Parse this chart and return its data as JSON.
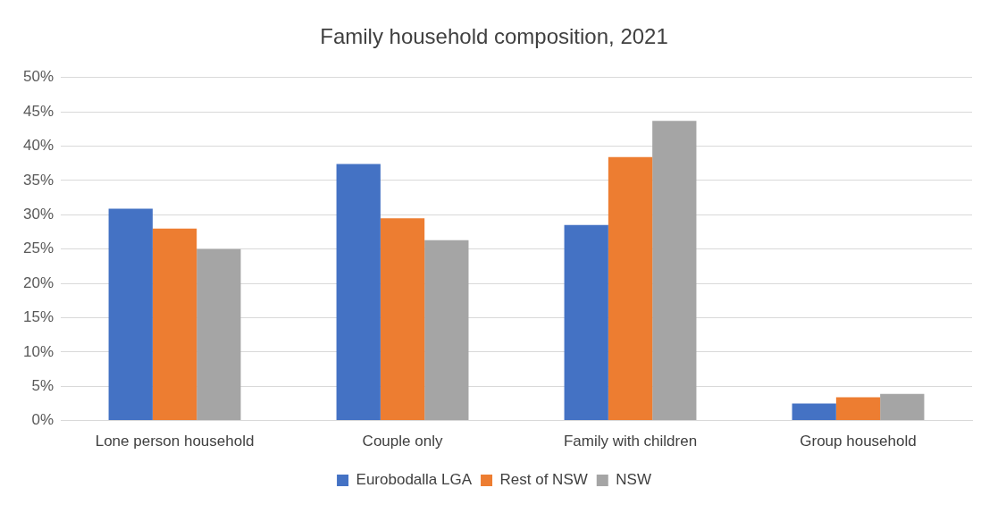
{
  "chart_data": {
    "type": "bar",
    "title": "Family household composition, 2021",
    "categories": [
      "Lone person household",
      "Couple only",
      "Family with children",
      "Group household"
    ],
    "series": [
      {
        "name": "Eurobodalla LGA",
        "color": "#4472c4",
        "values": [
          30.9,
          37.4,
          28.5,
          2.5
        ]
      },
      {
        "name": "Rest of NSW",
        "color": "#ed7d31",
        "values": [
          28.0,
          29.5,
          38.4,
          3.4
        ]
      },
      {
        "name": "NSW",
        "color": "#a5a5a5",
        "values": [
          25.0,
          26.3,
          43.7,
          3.9
        ]
      }
    ],
    "ylim": [
      0,
      50
    ],
    "yticks": [
      {
        "value": 0,
        "label": "0%"
      },
      {
        "value": 5,
        "label": "5%"
      },
      {
        "value": 10,
        "label": "10%"
      },
      {
        "value": 15,
        "label": "15%"
      },
      {
        "value": 20,
        "label": "20%"
      },
      {
        "value": 25,
        "label": "25%"
      },
      {
        "value": 30,
        "label": "30%"
      },
      {
        "value": 35,
        "label": "35%"
      },
      {
        "value": 40,
        "label": "40%"
      },
      {
        "value": 45,
        "label": "45%"
      },
      {
        "value": 50,
        "label": "50%"
      }
    ],
    "grid": "y",
    "legend": "bottom"
  }
}
